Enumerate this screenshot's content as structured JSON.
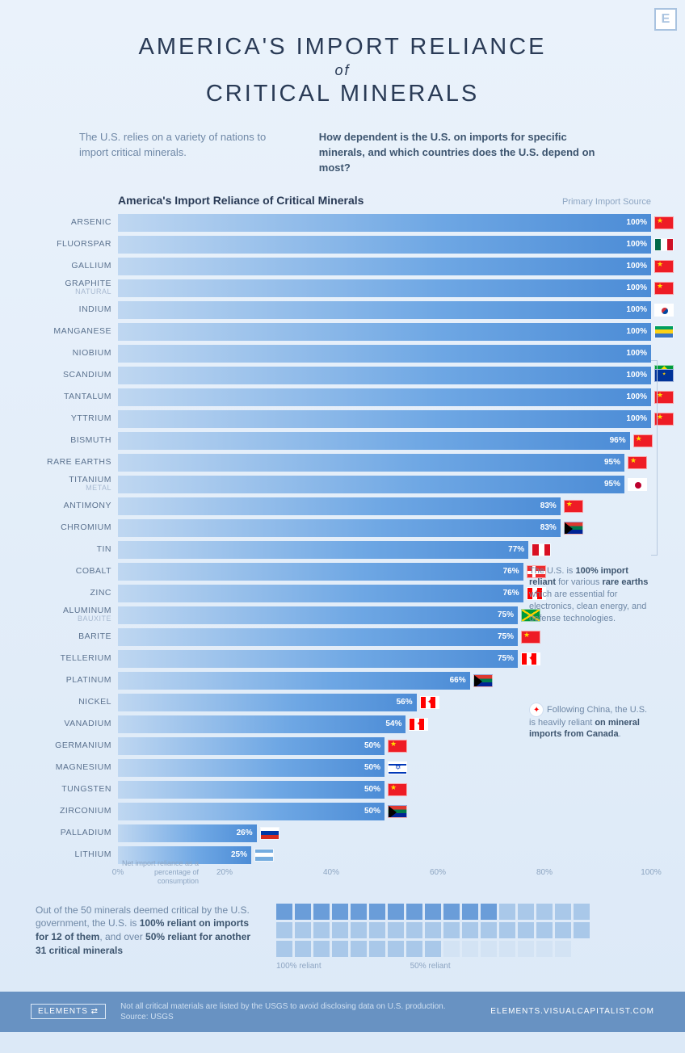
{
  "corner_badge": "E",
  "title_line1": "AMERICA'S IMPORT RELIANCE",
  "title_of": "of",
  "title_line2": "CRITICAL MINERALS",
  "intro_left": "The U.S. relies on a variety of nations to import critical minerals.",
  "intro_right": "How dependent is the U.S. on imports for specific minerals, and which countries does the U.S. depend on most?",
  "chart": {
    "type": "bar",
    "title": "America's Import Reliance of Critical Minerals",
    "legend": "Primary Import Source",
    "xlim": [
      0,
      100
    ],
    "xticks": [
      0,
      20,
      40,
      60,
      80,
      100
    ],
    "xtick_labels": [
      "0%",
      "20%",
      "40%",
      "60%",
      "80%",
      "100%"
    ],
    "bar_gradient_start": "#bfd7f1",
    "bar_gradient_end": "#4c8cd6",
    "value_suffix": "%",
    "axis_caption": "Net import reliance as a percentage of consumption",
    "rows": [
      {
        "label": "ARSENIC",
        "sub": "",
        "value": 100,
        "flag": "cn"
      },
      {
        "label": "FLUORSPAR",
        "sub": "",
        "value": 100,
        "flag": "mx"
      },
      {
        "label": "GALLIUM",
        "sub": "",
        "value": 100,
        "flag": "cn"
      },
      {
        "label": "GRAPHITE",
        "sub": "NATURAL",
        "value": 100,
        "flag": "cn"
      },
      {
        "label": "INDIUM",
        "sub": "",
        "value": 100,
        "flag": "kr"
      },
      {
        "label": "MANGANESE",
        "sub": "",
        "value": 100,
        "flag": "ga"
      },
      {
        "label": "NIOBIUM",
        "sub": "",
        "value": 100,
        "flag": "br"
      },
      {
        "label": "SCANDIUM",
        "sub": "",
        "value": 100,
        "flag": "eu"
      },
      {
        "label": "TANTALUM",
        "sub": "",
        "value": 100,
        "flag": "cn"
      },
      {
        "label": "YTTRIUM",
        "sub": "",
        "value": 100,
        "flag": "cn"
      },
      {
        "label": "BISMUTH",
        "sub": "",
        "value": 96,
        "flag": "cn"
      },
      {
        "label": "RARE EARTHS",
        "sub": "",
        "value": 95,
        "flag": "cn"
      },
      {
        "label": "TITANIUM",
        "sub": "METAL",
        "value": 95,
        "flag": "jp"
      },
      {
        "label": "ANTIMONY",
        "sub": "",
        "value": 83,
        "flag": "cn"
      },
      {
        "label": "CHROMIUM",
        "sub": "",
        "value": 83,
        "flag": "za"
      },
      {
        "label": "TIN",
        "sub": "",
        "value": 77,
        "flag": "pe"
      },
      {
        "label": "COBALT",
        "sub": "",
        "value": 76,
        "flag": "no"
      },
      {
        "label": "ZINC",
        "sub": "",
        "value": 76,
        "flag": "ca"
      },
      {
        "label": "ALUMINUM",
        "sub": "BAUXITE",
        "value": 75,
        "flag": "jm"
      },
      {
        "label": "BARITE",
        "sub": "",
        "value": 75,
        "flag": "cn"
      },
      {
        "label": "TELLERIUM",
        "sub": "",
        "value": 75,
        "flag": "ca"
      },
      {
        "label": "PLATINUM",
        "sub": "",
        "value": 66,
        "flag": "za"
      },
      {
        "label": "NICKEL",
        "sub": "",
        "value": 56,
        "flag": "ca"
      },
      {
        "label": "VANADIUM",
        "sub": "",
        "value": 54,
        "flag": "ca"
      },
      {
        "label": "GERMANIUM",
        "sub": "",
        "value": 50,
        "flag": "cn"
      },
      {
        "label": "MAGNESIUM",
        "sub": "",
        "value": 50,
        "flag": "il"
      },
      {
        "label": "TUNGSTEN",
        "sub": "",
        "value": 50,
        "flag": "cn"
      },
      {
        "label": "ZIRCONIUM",
        "sub": "",
        "value": 50,
        "flag": "za"
      },
      {
        "label": "PALLADIUM",
        "sub": "",
        "value": 26,
        "flag": "ru"
      },
      {
        "label": "LITHIUM",
        "sub": "",
        "value": 25,
        "flag": "ar"
      }
    ]
  },
  "annotation_rare": "The U.S. is <strong>100% import reliant</strong> for various <strong>rare earths</strong> which are essential for electronics, clean energy, and defense technologies.",
  "annotation_canada": "Following China, the U.S. is heavily reliant <strong>on mineral imports from Canada</strong>.",
  "waffle": {
    "text": "Out of the 50 minerals deemed critical by the U.S. government, the U.S. is <strong>100% reliant on imports for 12 of them</strong>, and over <strong>50% reliant for another 31 critical minerals</strong>",
    "total": 50,
    "reliant_100": 12,
    "reliant_50": 31,
    "remainder": 7,
    "colors": {
      "c100": "#6a9dd9",
      "c50": "#a9c8e9",
      "c0": "#d3e3f4"
    },
    "cols": 17,
    "label_100": "100% reliant",
    "label_50": "50% reliant"
  },
  "footer": {
    "logo": "ELEMENTS ⇄",
    "disclaimer": "Not all critical materials are listed by the USGS to avoid disclosing data on U.S. production.",
    "source": "Source: USGS",
    "site": "ELEMENTS.VISUALCAPITALIST.COM"
  },
  "flags": {
    "cn": {
      "name": "China"
    },
    "mx": {
      "name": "Mexico",
      "stripes": [
        "#006847",
        "#ffffff",
        "#ce1126"
      ]
    },
    "kr": {
      "name": "South Korea"
    },
    "ga": {
      "name": "Gabon",
      "stripes": [
        "#009e60",
        "#fcd116",
        "#3a75c4"
      ]
    },
    "br": {
      "name": "Brazil"
    },
    "eu": {
      "name": "European Union"
    },
    "jp": {
      "name": "Japan"
    },
    "za": {
      "name": "South Africa"
    },
    "pe": {
      "name": "Peru",
      "stripes": [
        "#d91023",
        "#ffffff",
        "#d91023"
      ]
    },
    "no": {
      "name": "Norway"
    },
    "ca": {
      "name": "Canada"
    },
    "jm": {
      "name": "Jamaica"
    },
    "il": {
      "name": "Israel"
    },
    "ru": {
      "name": "Russia",
      "stripes": [
        "#ffffff",
        "#0039a6",
        "#d52b1e"
      ]
    },
    "ar": {
      "name": "Argentina",
      "stripes": [
        "#74acdf",
        "#ffffff",
        "#74acdf"
      ]
    }
  }
}
